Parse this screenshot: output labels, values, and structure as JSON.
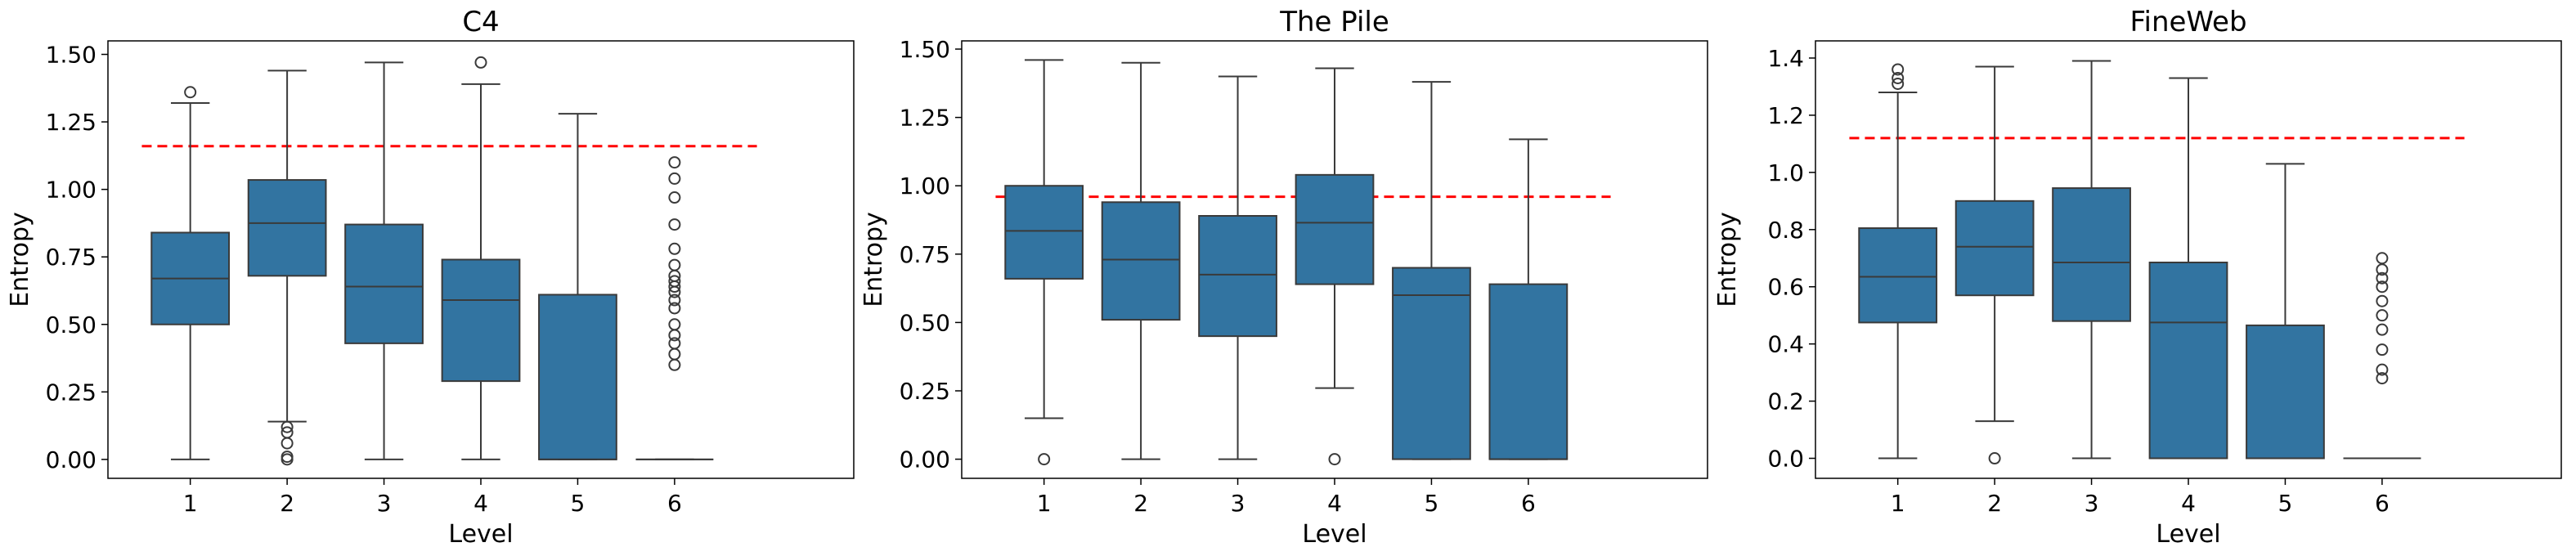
{
  "colors": {
    "box_fill": "#3274a1",
    "box_edge": "#3a3a3a",
    "reference_line": "#ff0000",
    "axes_frame": "#000000"
  },
  "chart_data": [
    {
      "type": "box",
      "title": "C4",
      "xlabel": "Level",
      "ylabel": "Entropy",
      "categories": [
        "1",
        "2",
        "3",
        "4",
        "5",
        "6"
      ],
      "ylim": [
        -0.07,
        1.55
      ],
      "yticks": [
        0.0,
        0.25,
        0.5,
        0.75,
        1.0,
        1.25,
        1.5
      ],
      "ytick_labels": [
        "0.00",
        "0.25",
        "0.50",
        "0.75",
        "1.00",
        "1.25",
        "1.50"
      ],
      "grid": false,
      "reference_line": 1.16,
      "boxes": [
        {
          "level": "1",
          "q1": 0.5,
          "median": 0.67,
          "q3": 0.84,
          "whisker_low": 0.0,
          "whisker_high": 1.32,
          "outliers": [
            1.36
          ]
        },
        {
          "level": "2",
          "q1": 0.68,
          "median": 0.875,
          "q3": 1.035,
          "whisker_low": 0.14,
          "whisker_high": 1.44,
          "outliers": [
            0.0,
            0.01,
            0.06,
            0.1,
            0.12
          ]
        },
        {
          "level": "3",
          "q1": 0.43,
          "median": 0.64,
          "q3": 0.87,
          "whisker_low": 0.0,
          "whisker_high": 1.47,
          "outliers": []
        },
        {
          "level": "4",
          "q1": 0.29,
          "median": 0.59,
          "q3": 0.74,
          "whisker_low": 0.0,
          "whisker_high": 1.39,
          "outliers": [
            1.47
          ]
        },
        {
          "level": "5",
          "q1": 0.0,
          "median": 0.0,
          "q3": 0.61,
          "whisker_low": 0.0,
          "whisker_high": 1.28,
          "outliers": []
        },
        {
          "level": "6",
          "q1": 0.0,
          "median": 0.0,
          "q3": 0.0,
          "whisker_low": 0.0,
          "whisker_high": 0.0,
          "outliers": [
            0.35,
            0.39,
            0.43,
            0.46,
            0.5,
            0.56,
            0.59,
            0.62,
            0.64,
            0.66,
            0.68,
            0.72,
            0.78,
            0.87,
            0.97,
            1.04,
            1.1
          ]
        }
      ]
    },
    {
      "type": "box",
      "title": "The Pile",
      "xlabel": "Level",
      "ylabel": "Entropy",
      "categories": [
        "1",
        "2",
        "3",
        "4",
        "5",
        "6"
      ],
      "ylim": [
        -0.07,
        1.53
      ],
      "yticks": [
        0.0,
        0.25,
        0.5,
        0.75,
        1.0,
        1.25,
        1.5
      ],
      "ytick_labels": [
        "0.00",
        "0.25",
        "0.50",
        "0.75",
        "1.00",
        "1.25",
        "1.50"
      ],
      "grid": false,
      "reference_line": 0.96,
      "boxes": [
        {
          "level": "1",
          "q1": 0.66,
          "median": 0.835,
          "q3": 1.0,
          "whisker_low": 0.15,
          "whisker_high": 1.46,
          "outliers": [
            0.0
          ]
        },
        {
          "level": "2",
          "q1": 0.51,
          "median": 0.73,
          "q3": 0.94,
          "whisker_low": 0.0,
          "whisker_high": 1.45,
          "outliers": []
        },
        {
          "level": "3",
          "q1": 0.45,
          "median": 0.675,
          "q3": 0.89,
          "whisker_low": 0.0,
          "whisker_high": 1.4,
          "outliers": []
        },
        {
          "level": "4",
          "q1": 0.64,
          "median": 0.865,
          "q3": 1.04,
          "whisker_low": 0.26,
          "whisker_high": 1.43,
          "outliers": [
            0.0
          ]
        },
        {
          "level": "5",
          "q1": 0.0,
          "median": 0.6,
          "q3": 0.7,
          "whisker_low": 0.0,
          "whisker_high": 1.38,
          "outliers": []
        },
        {
          "level": "6",
          "q1": 0.0,
          "median": 0.0,
          "q3": 0.64,
          "whisker_low": 0.0,
          "whisker_high": 1.17,
          "outliers": []
        }
      ]
    },
    {
      "type": "box",
      "title": "FineWeb",
      "xlabel": "Level",
      "ylabel": "Entropy",
      "categories": [
        "1",
        "2",
        "3",
        "4",
        "5",
        "6"
      ],
      "ylim": [
        -0.07,
        1.46
      ],
      "yticks": [
        0.0,
        0.2,
        0.4,
        0.6,
        0.8,
        1.0,
        1.2,
        1.4
      ],
      "ytick_labels": [
        "0.0",
        "0.2",
        "0.4",
        "0.6",
        "0.8",
        "1.0",
        "1.2",
        "1.4"
      ],
      "grid": false,
      "reference_line": 1.12,
      "boxes": [
        {
          "level": "1",
          "q1": 0.475,
          "median": 0.635,
          "q3": 0.805,
          "whisker_low": 0.0,
          "whisker_high": 1.28,
          "outliers": [
            1.31,
            1.33,
            1.36
          ]
        },
        {
          "level": "2",
          "q1": 0.57,
          "median": 0.74,
          "q3": 0.9,
          "whisker_low": 0.13,
          "whisker_high": 1.37,
          "outliers": [
            0.0
          ]
        },
        {
          "level": "3",
          "q1": 0.48,
          "median": 0.685,
          "q3": 0.945,
          "whisker_low": 0.0,
          "whisker_high": 1.39,
          "outliers": []
        },
        {
          "level": "4",
          "q1": 0.0,
          "median": 0.475,
          "q3": 0.685,
          "whisker_low": 0.0,
          "whisker_high": 1.33,
          "outliers": []
        },
        {
          "level": "5",
          "q1": 0.0,
          "median": 0.0,
          "q3": 0.465,
          "whisker_low": 0.0,
          "whisker_high": 1.03,
          "outliers": []
        },
        {
          "level": "6",
          "q1": 0.0,
          "median": 0.0,
          "q3": 0.0,
          "whisker_low": 0.0,
          "whisker_high": 0.0,
          "outliers": [
            0.28,
            0.31,
            0.38,
            0.45,
            0.5,
            0.55,
            0.6,
            0.63,
            0.66,
            0.7
          ]
        }
      ]
    }
  ]
}
